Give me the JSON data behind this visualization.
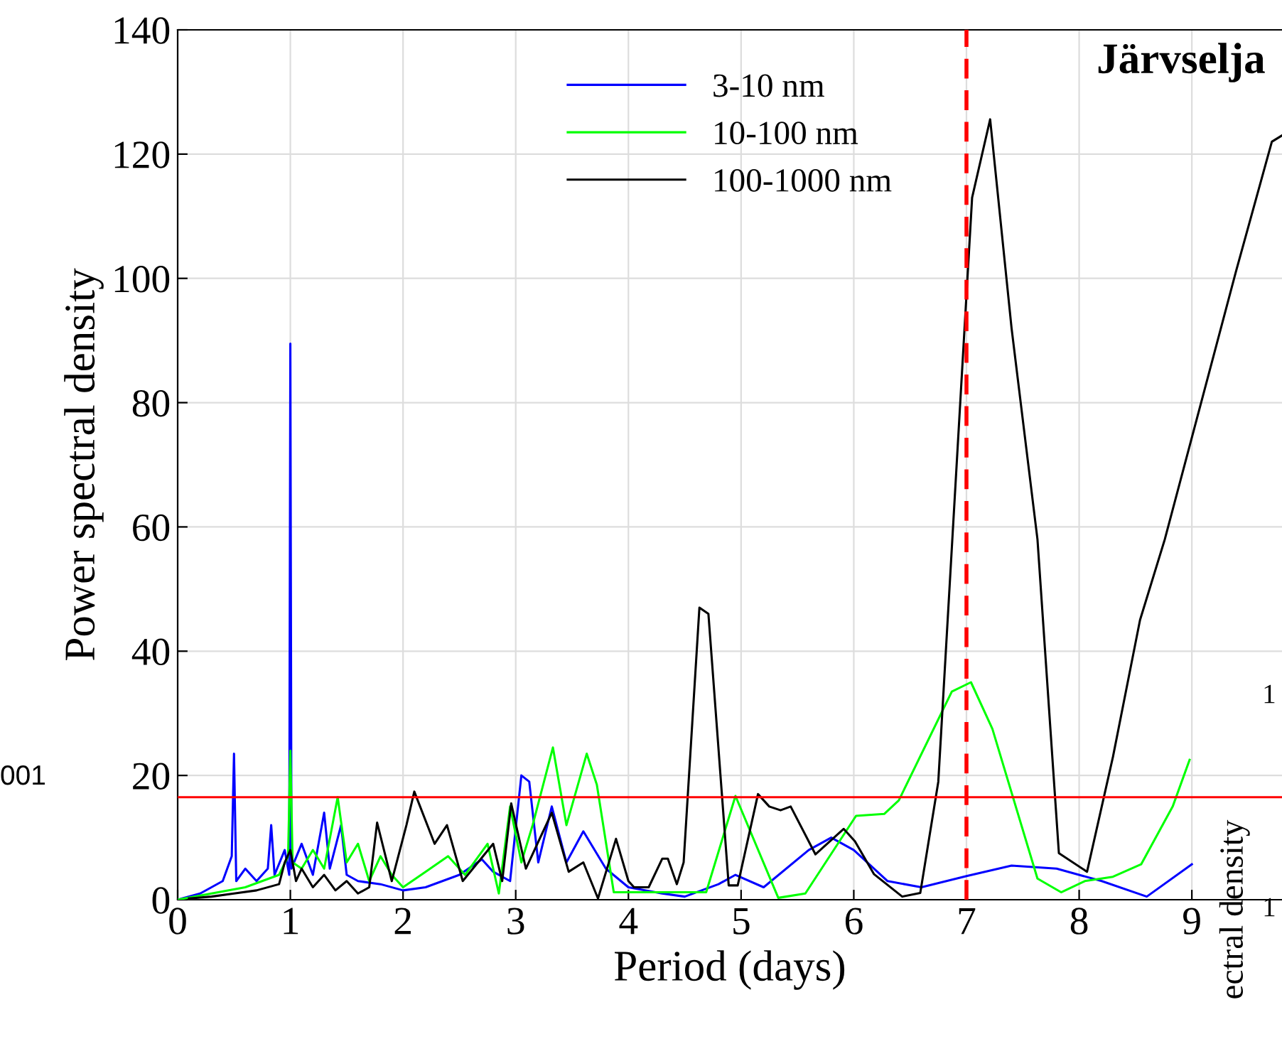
{
  "chart_data": {
    "type": "line",
    "title": "Järvselja",
    "xlabel": "Period (days)",
    "ylabel": "Power spectral density",
    "xlim": [
      0,
      9.8
    ],
    "ylim": [
      0,
      140
    ],
    "xticks": [
      0,
      1,
      2,
      3,
      4,
      5,
      6,
      7,
      8,
      9
    ],
    "yticks": [
      0,
      20,
      40,
      60,
      80,
      100,
      120,
      140
    ],
    "grid": true,
    "legend": "top",
    "line_style": "solid",
    "marker": "none",
    "series": [
      {
        "name": "3-10 nm",
        "color": "#0000ff",
        "x": [
          0,
          0.2,
          0.4,
          0.48,
          0.5,
          0.52,
          0.6,
          0.7,
          0.8,
          0.83,
          0.86,
          0.95,
          0.99,
          1.0,
          1.01,
          1.1,
          1.2,
          1.3,
          1.35,
          1.45,
          1.5,
          1.6,
          1.8,
          2.0,
          2.2,
          2.5,
          2.7,
          2.8,
          2.95,
          3.05,
          3.12,
          3.2,
          3.32,
          3.45,
          3.6,
          3.8,
          4.0,
          4.3,
          4.5,
          4.8,
          4.95,
          5.2,
          5.6,
          5.8,
          6.0,
          6.3,
          6.6,
          7.0,
          7.4,
          7.8,
          8.2,
          8.6,
          9.0
        ],
        "values": [
          0,
          1,
          3,
          7,
          23.5,
          3,
          5,
          3,
          5,
          12,
          4,
          8,
          4,
          89.5,
          5,
          9,
          4,
          14,
          5,
          12,
          4,
          3,
          2.5,
          1.5,
          2,
          4,
          6.5,
          4.5,
          3,
          20,
          19,
          6,
          15,
          6,
          11,
          5,
          2,
          1,
          0.5,
          2.5,
          4,
          2,
          8,
          10,
          8,
          3,
          2,
          3.8,
          5.5,
          5,
          3,
          0.5,
          5.7
        ]
      },
      {
        "name": "10-100 nm",
        "color": "#00ff00",
        "x": [
          0,
          0.3,
          0.6,
          0.9,
          0.98,
          1.0,
          1.02,
          1.1,
          1.2,
          1.3,
          1.42,
          1.5,
          1.6,
          1.7,
          1.8,
          1.9,
          2.0,
          2.2,
          2.4,
          2.55,
          2.75,
          2.85,
          2.95,
          3.05,
          3.15,
          3.33,
          3.45,
          3.63,
          3.72,
          3.87,
          4.26,
          4.69,
          4.95,
          5.33,
          5.57,
          6.02,
          6.27,
          6.4,
          6.87,
          7.04,
          7.23,
          7.63,
          7.84,
          8.05,
          8.3,
          8.55,
          8.83,
          8.98
        ],
        "values": [
          0,
          1,
          2,
          4,
          7,
          24,
          6,
          5,
          8,
          5,
          16.5,
          6,
          9,
          3,
          7,
          4,
          2,
          4.5,
          7,
          4,
          9,
          1,
          15,
          6,
          12,
          24.5,
          12,
          23.5,
          18.5,
          1.2,
          1.2,
          1.2,
          16.7,
          0.3,
          1,
          13.5,
          13.8,
          16,
          33.5,
          35,
          27.5,
          3.4,
          1.2,
          3,
          3.7,
          5.7,
          15,
          22.5
        ]
      },
      {
        "name": "100-1000 nm",
        "color": "#000000",
        "x": [
          0.1,
          0.3,
          0.5,
          0.7,
          0.9,
          0.95,
          1.0,
          1.05,
          1.1,
          1.2,
          1.3,
          1.4,
          1.5,
          1.6,
          1.7,
          1.77,
          1.9,
          2.03,
          2.1,
          2.28,
          2.39,
          2.53,
          2.8,
          2.88,
          2.96,
          3.09,
          3.32,
          3.47,
          3.6,
          3.73,
          3.89,
          4.0,
          4.05,
          4.18,
          4.3,
          4.35,
          4.43,
          4.49,
          4.63,
          4.71,
          4.89,
          4.97,
          5.15,
          5.25,
          5.35,
          5.44,
          5.66,
          5.91,
          6.01,
          6.18,
          6.43,
          6.59,
          6.75,
          7.05,
          7.21,
          7.4,
          7.63,
          7.82,
          8.07,
          8.3,
          8.54,
          8.76,
          9.39,
          9.71,
          9.8
        ],
        "values": [
          0.2,
          0.5,
          1,
          1.5,
          2.5,
          6,
          8,
          3,
          5,
          2,
          4,
          1.5,
          3,
          1,
          2,
          12.4,
          3,
          12,
          17.4,
          9,
          12,
          3,
          9,
          3,
          15.5,
          5,
          14,
          4.5,
          6,
          0.2,
          9.8,
          3,
          2,
          2,
          6.6,
          6.6,
          2.5,
          6,
          47,
          46,
          2.3,
          2.3,
          17,
          15,
          14.4,
          15,
          7.3,
          11.4,
          9.4,
          4.1,
          0.5,
          1.1,
          19,
          113,
          125.6,
          92,
          58,
          7.5,
          4.5,
          23,
          45,
          58,
          101,
          122,
          123
        ]
      }
    ],
    "ref_lines": [
      {
        "axis": "y",
        "value": 16.5,
        "color": "#ff0000",
        "line_style": "solid"
      },
      {
        "axis": "x",
        "value": 7,
        "color": "#ff0000",
        "line_style": "dashed"
      }
    ],
    "annotations": [
      "001",
      "1",
      "1",
      "ectral density"
    ]
  }
}
